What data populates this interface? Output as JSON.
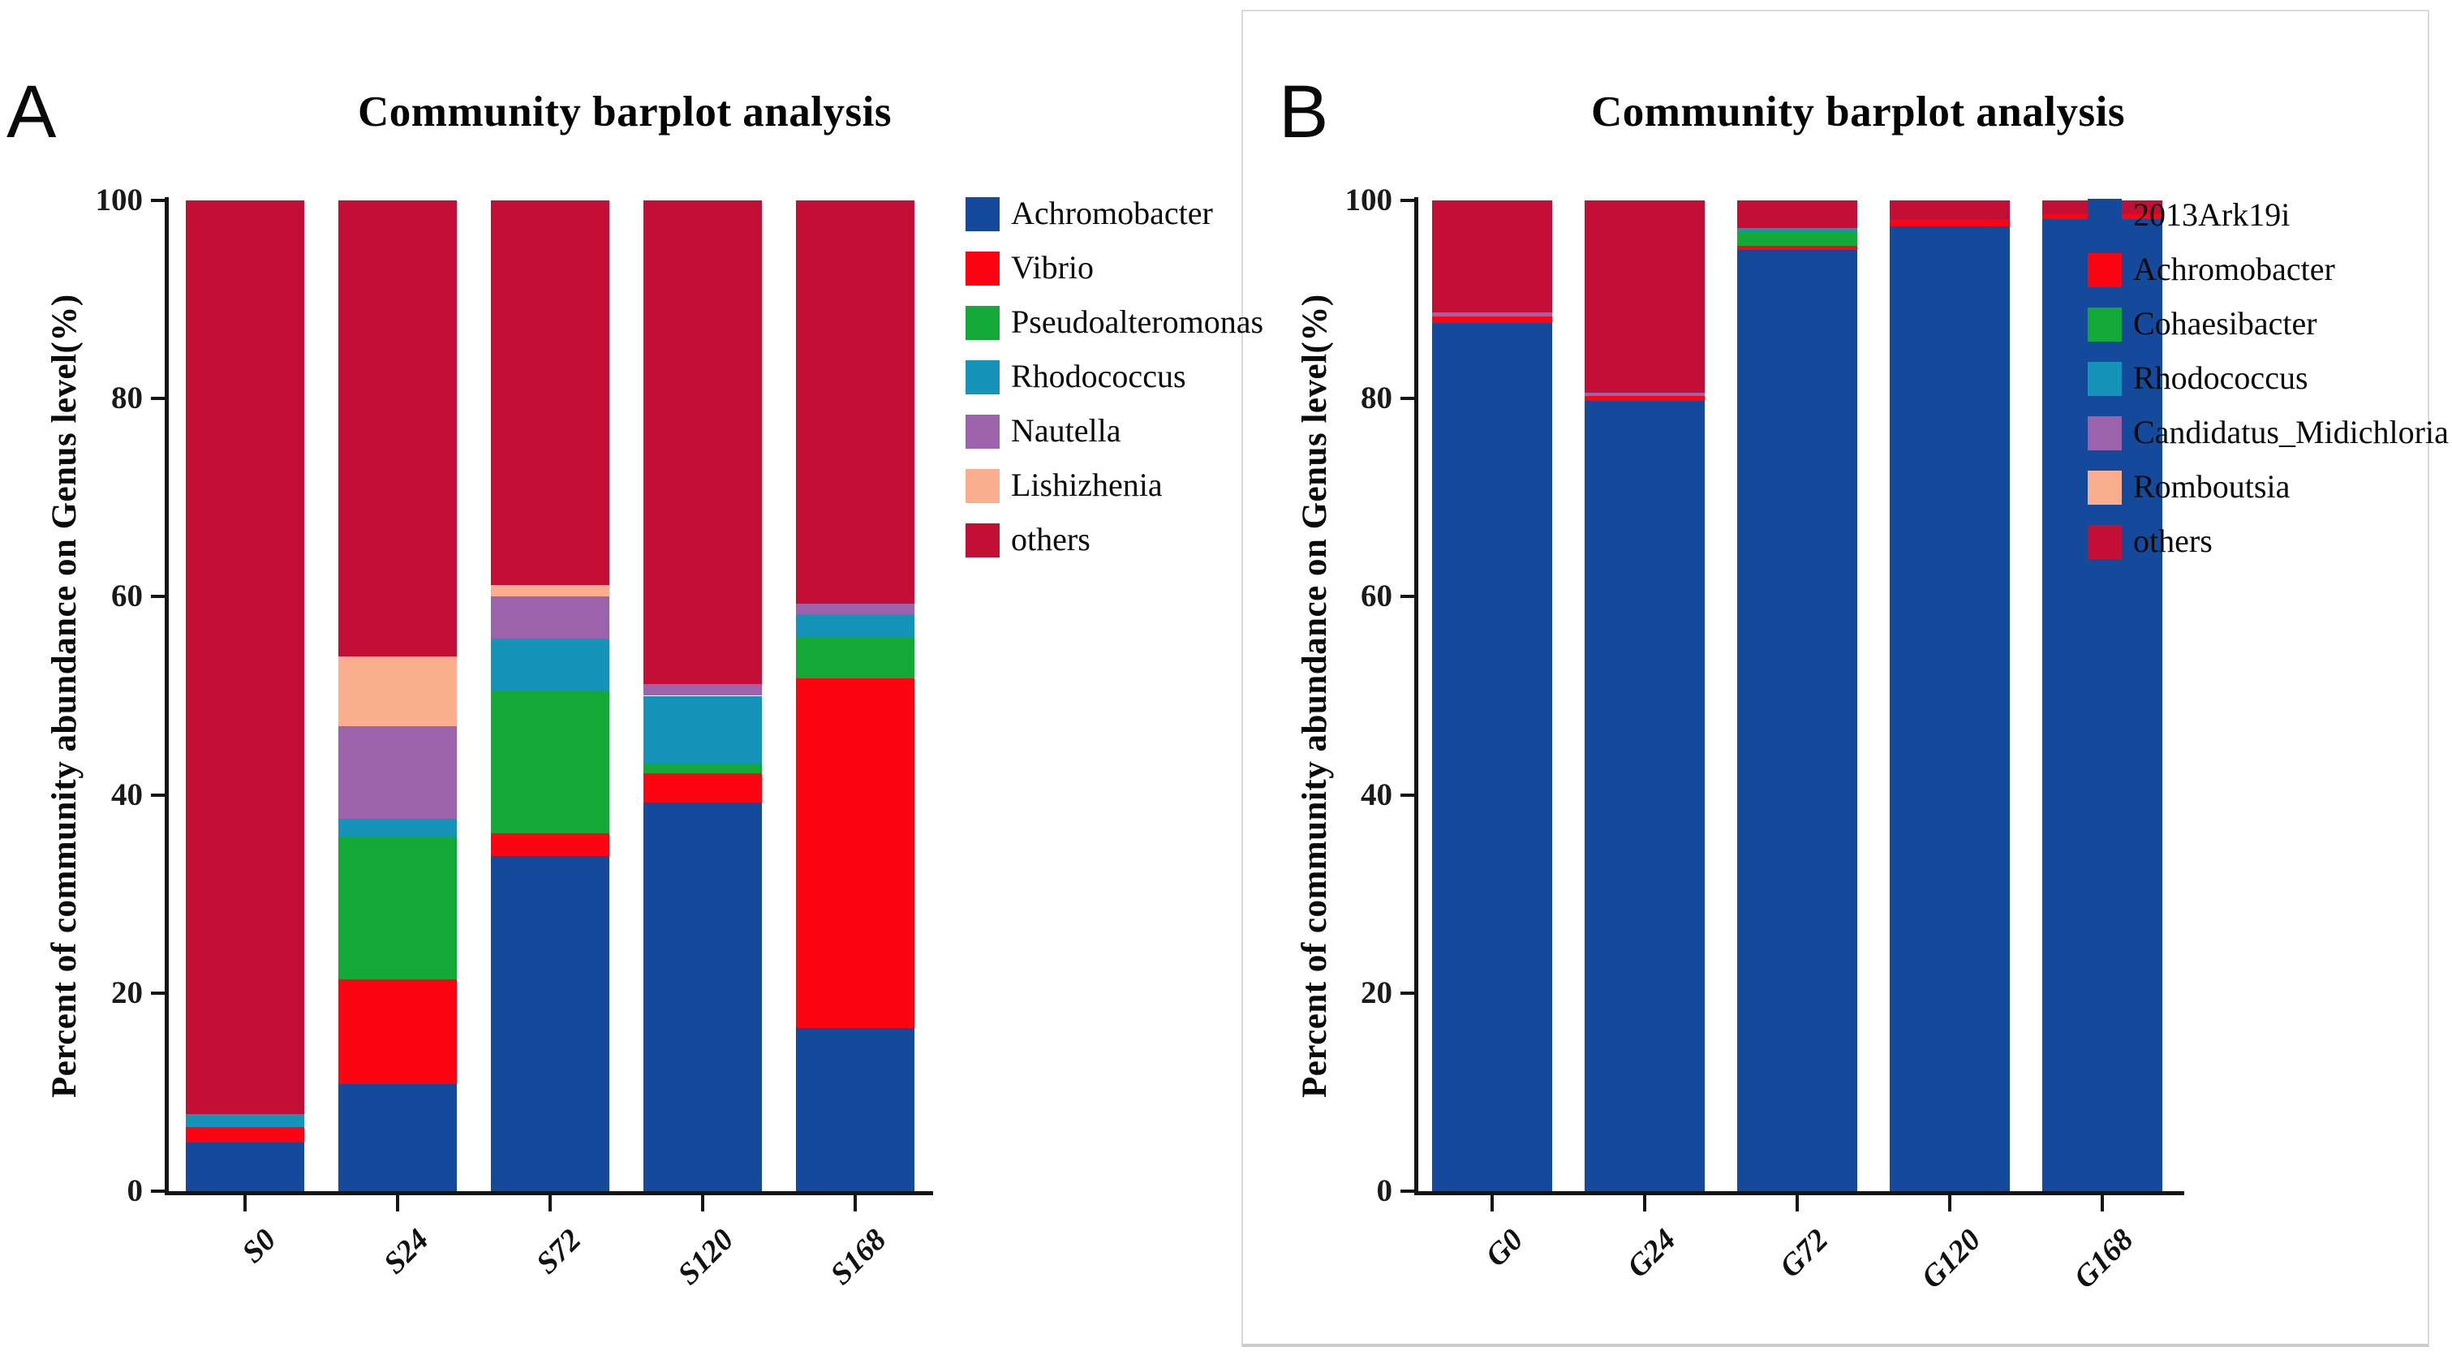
{
  "chart_data": [
    {
      "type": "bar",
      "stacked": true,
      "label": "A",
      "title": "Community barplot analysis",
      "ylabel": "Percent of community abundance on Genus level(%)",
      "ylim": [
        0,
        100
      ],
      "yticks": [
        0,
        20,
        40,
        60,
        80,
        100
      ],
      "grid": false,
      "legend_position": "right",
      "categories": [
        "S0",
        "S24",
        "S72",
        "S120",
        "S168"
      ],
      "series": [
        {
          "name": "Achromobacter",
          "color": "#15499C",
          "values": [
            4.9,
            10.8,
            33.8,
            39.2,
            16.5
          ]
        },
        {
          "name": "Vibrio",
          "color": "#FA0511",
          "values": [
            1.6,
            10.6,
            2.3,
            3.0,
            35.3
          ]
        },
        {
          "name": "Pseudoalteromonas",
          "color": "#14A837",
          "values": [
            0,
            14.3,
            14.4,
            1.0,
            4.1
          ]
        },
        {
          "name": "Rhodococcus",
          "color": "#1593B8",
          "values": [
            1.3,
            1.9,
            5.3,
            6.8,
            2.3
          ]
        },
        {
          "name": "Nautella",
          "color": "#9C63AC",
          "values": [
            0,
            9.3,
            4.2,
            1.2,
            1.1
          ]
        },
        {
          "name": "Lishizhenia",
          "color": "#FBAE8E",
          "values": [
            0,
            7.1,
            1.2,
            0,
            0
          ]
        },
        {
          "name": "others",
          "color": "#C30F36",
          "values": [
            92.2,
            46.0,
            38.8,
            48.8,
            40.7
          ]
        }
      ]
    },
    {
      "type": "bar",
      "stacked": true,
      "label": "B",
      "title": "Community barplot analysis",
      "ylabel": "Percent of community abundance on Genus level(%)",
      "ylim": [
        0,
        100
      ],
      "yticks": [
        0,
        20,
        40,
        60,
        80,
        100
      ],
      "grid": false,
      "legend_position": "right",
      "categories": [
        "G0",
        "G24",
        "G72",
        "G120",
        "G168"
      ],
      "series": [
        {
          "name": "2013Ark19i",
          "color": "#15499C",
          "values": [
            87.6,
            79.8,
            95.0,
            97.4,
            98.1
          ]
        },
        {
          "name": "Achromobacter",
          "color": "#FA0511",
          "values": [
            0.7,
            0.5,
            0.4,
            0.6,
            0.5
          ]
        },
        {
          "name": "Cohaesibacter",
          "color": "#14A837",
          "values": [
            0,
            0,
            1.5,
            0,
            0
          ]
        },
        {
          "name": "Rhodococcus",
          "color": "#1593B8",
          "values": [
            0,
            0,
            0.3,
            0,
            0
          ]
        },
        {
          "name": "Candidatus_Midichloria",
          "color": "#9C63AC",
          "values": [
            0.4,
            0.3,
            0,
            0,
            0
          ]
        },
        {
          "name": "Romboutsia",
          "color": "#FBAE8E",
          "values": [
            0,
            0,
            0,
            0,
            0
          ]
        },
        {
          "name": "others",
          "color": "#C30F36",
          "values": [
            11.3,
            19.4,
            2.8,
            2.0,
            1.4
          ]
        }
      ]
    }
  ]
}
